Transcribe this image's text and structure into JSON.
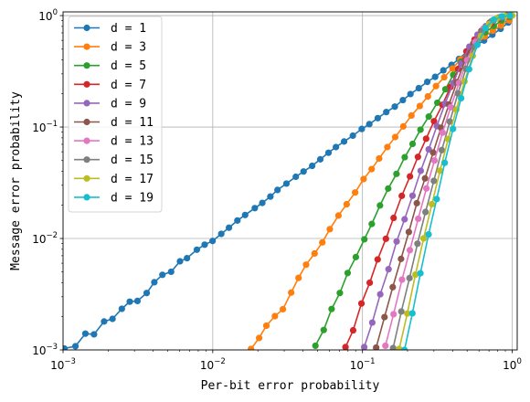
{
  "chart_data": {
    "type": "line",
    "title": "",
    "xlabel": "Per-bit error probability",
    "ylabel": "Message error probability",
    "xscale": "log",
    "yscale": "log",
    "xlim": [
      0.001,
      1.08
    ],
    "ylim": [
      0.001,
      1.08
    ],
    "x_ticks": [
      {
        "value": 0.001,
        "base": "10",
        "exp": "−3"
      },
      {
        "value": 0.01,
        "base": "10",
        "exp": "−2"
      },
      {
        "value": 0.1,
        "base": "10",
        "exp": "−1"
      },
      {
        "value": 1,
        "base": "10",
        "exp": "0"
      }
    ],
    "y_ticks": [
      {
        "value": 0.001,
        "base": "10",
        "exp": "−3"
      },
      {
        "value": 0.01,
        "base": "10",
        "exp": "−2"
      },
      {
        "value": 0.1,
        "base": "10",
        "exp": "−1"
      },
      {
        "value": 1,
        "base": "10",
        "exp": "0"
      }
    ],
    "grid": true,
    "legend_position": "top-left",
    "series": [
      {
        "name": "d = 1",
        "color": "#1f77b4",
        "points": [
          [
            0.00102,
            0.00103
          ],
          [
            0.00121,
            0.00108
          ],
          [
            0.00141,
            0.0014
          ],
          [
            0.00161,
            0.00138
          ],
          [
            0.00188,
            0.0018
          ],
          [
            0.00214,
            0.0019
          ],
          [
            0.00247,
            0.00234
          ],
          [
            0.00279,
            0.00271
          ],
          [
            0.00314,
            0.00275
          ],
          [
            0.00362,
            0.00324
          ],
          [
            0.00407,
            0.00405
          ],
          [
            0.00461,
            0.00472
          ],
          [
            0.00527,
            0.00503
          ],
          [
            0.00604,
            0.00624
          ],
          [
            0.00673,
            0.00666
          ],
          [
            0.00783,
            0.00793
          ],
          [
            0.00883,
            0.0088
          ],
          [
            0.00997,
            0.0095
          ],
          [
            0.0114,
            0.011
          ],
          [
            0.01283,
            0.01249
          ],
          [
            0.0146,
            0.0145
          ],
          [
            0.01645,
            0.01625
          ],
          [
            0.01909,
            0.01872
          ],
          [
            0.02142,
            0.02085
          ],
          [
            0.02425,
            0.02377
          ],
          [
            0.02706,
            0.02726
          ],
          [
            0.03104,
            0.03109
          ],
          [
            0.03585,
            0.03578
          ],
          [
            0.04042,
            0.03991
          ],
          [
            0.04611,
            0.04485
          ],
          [
            0.05225,
            0.05135
          ],
          [
            0.0593,
            0.0588
          ],
          [
            0.06649,
            0.06611
          ],
          [
            0.07536,
            0.07416
          ],
          [
            0.08622,
            0.08364
          ],
          [
            0.09892,
            0.0961
          ],
          [
            0.1111,
            0.1062
          ],
          [
            0.1265,
            0.1202
          ],
          [
            0.1442,
            0.1363
          ],
          [
            0.1644,
            0.1524
          ],
          [
            0.1861,
            0.1745
          ],
          [
            0.2091,
            0.1977
          ],
          [
            0.2377,
            0.2232
          ],
          [
            0.2708,
            0.2544
          ],
          [
            0.3057,
            0.282
          ],
          [
            0.3468,
            0.3225
          ],
          [
            0.3934,
            0.3613
          ],
          [
            0.4408,
            0.4086
          ],
          [
            0.5037,
            0.4792
          ],
          [
            0.5732,
            0.5437
          ],
          [
            0.6488,
            0.5971
          ],
          [
            0.737,
            0.6739
          ],
          [
            0.8364,
            0.7606
          ],
          [
            0.9416,
            0.8661
          ]
        ]
      },
      {
        "name": "d = 3",
        "color": "#ff7f0e",
        "points": [
          [
            0.018,
            0.00102
          ],
          [
            0.0204,
            0.00128
          ],
          [
            0.0228,
            0.00165
          ],
          [
            0.026,
            0.00201
          ],
          [
            0.0294,
            0.00232
          ],
          [
            0.0334,
            0.00327
          ],
          [
            0.0374,
            0.00443
          ],
          [
            0.042,
            0.00582
          ],
          [
            0.0479,
            0.00734
          ],
          [
            0.0539,
            0.00922
          ],
          [
            0.0605,
            0.01212
          ],
          [
            0.0691,
            0.01607
          ],
          [
            0.0784,
            0.0203
          ],
          [
            0.0893,
            0.02587
          ],
          [
            0.1017,
            0.03415
          ],
          [
            0.1151,
            0.04197
          ],
          [
            0.1292,
            0.05221
          ],
          [
            0.1466,
            0.06617
          ],
          [
            0.1654,
            0.08135
          ],
          [
            0.1873,
            0.1013
          ],
          [
            0.2123,
            0.1269
          ],
          [
            0.2414,
            0.1544
          ],
          [
            0.2735,
            0.1883
          ],
          [
            0.3097,
            0.233
          ],
          [
            0.3514,
            0.2797
          ],
          [
            0.3996,
            0.3352
          ],
          [
            0.4504,
            0.4037
          ],
          [
            0.5085,
            0.4803
          ],
          [
            0.5792,
            0.5585
          ],
          [
            0.6559,
            0.6499
          ],
          [
            0.743,
            0.7331
          ],
          [
            0.8407,
            0.8137
          ],
          [
            0.956,
            0.9058
          ]
        ]
      },
      {
        "name": "d = 5",
        "color": "#2ca02c",
        "points": [
          [
            0.0485,
            0.00109
          ],
          [
            0.0551,
            0.00151
          ],
          [
            0.0622,
            0.00233
          ],
          [
            0.0706,
            0.00324
          ],
          [
            0.0796,
            0.0049
          ],
          [
            0.0903,
            0.00681
          ],
          [
            0.1029,
            0.00983
          ],
          [
            0.1154,
            0.0135
          ],
          [
            0.1309,
            0.01978
          ],
          [
            0.1485,
            0.02805
          ],
          [
            0.1687,
            0.03798
          ],
          [
            0.1915,
            0.05364
          ],
          [
            0.2161,
            0.07058
          ],
          [
            0.244,
            0.09468
          ],
          [
            0.2772,
            0.1241
          ],
          [
            0.3162,
            0.1653
          ],
          [
            0.358,
            0.2183
          ],
          [
            0.4035,
            0.2939
          ],
          [
            0.4548,
            0.3852
          ],
          [
            0.5171,
            0.4814
          ],
          [
            0.5808,
            0.5968
          ],
          [
            0.6618,
            0.708
          ],
          [
            0.7534,
            0.8084
          ],
          [
            0.851,
            0.9056
          ],
          [
            0.9673,
            0.9742
          ]
        ]
      },
      {
        "name": "d = 7",
        "color": "#d62728",
        "points": [
          [
            0.077,
            0.00106
          ],
          [
            0.0866,
            0.0015
          ],
          [
            0.0984,
            0.00261
          ],
          [
            0.1118,
            0.00401
          ],
          [
            0.1263,
            0.00649
          ],
          [
            0.1434,
            0.00994
          ],
          [
            0.1614,
            0.01529
          ],
          [
            0.183,
            0.02413
          ],
          [
            0.2076,
            0.03606
          ],
          [
            0.2345,
            0.05394
          ],
          [
            0.2661,
            0.07858
          ],
          [
            0.3003,
            0.1127
          ],
          [
            0.3418,
            0.1583
          ],
          [
            0.3872,
            0.229
          ],
          [
            0.4366,
            0.3327
          ],
          [
            0.4949,
            0.4776
          ],
          [
            0.5605,
            0.6093
          ],
          [
            0.6379,
            0.7364
          ],
          [
            0.7223,
            0.8479
          ],
          [
            0.8183,
            0.9434
          ],
          [
            0.928,
            0.9857
          ]
        ]
      },
      {
        "name": "d = 9",
        "color": "#9467bd",
        "points": [
          [
            0.1027,
            0.00106
          ],
          [
            0.1162,
            0.00176
          ],
          [
            0.1314,
            0.00316
          ],
          [
            0.1493,
            0.0053
          ],
          [
            0.1691,
            0.0094
          ],
          [
            0.1911,
            0.01487
          ],
          [
            0.216,
            0.02419
          ],
          [
            0.2448,
            0.04047
          ],
          [
            0.2769,
            0.06308
          ],
          [
            0.3139,
            0.102
          ],
          [
            0.3561,
            0.1626
          ],
          [
            0.4046,
            0.2485
          ],
          [
            0.4558,
            0.3719
          ],
          [
            0.5176,
            0.5264
          ],
          [
            0.5866,
            0.674
          ],
          [
            0.6659,
            0.8049
          ],
          [
            0.754,
            0.9098
          ],
          [
            0.855,
            0.966
          ],
          [
            0.9697,
            1.0
          ]
        ]
      },
      {
        "name": "d = 11",
        "color": "#8c564b",
        "points": [
          [
            0.1234,
            0.00105
          ],
          [
            0.1403,
            0.00197
          ],
          [
            0.1593,
            0.00366
          ],
          [
            0.1809,
            0.00656
          ],
          [
            0.204,
            0.01144
          ],
          [
            0.2307,
            0.02075
          ],
          [
            0.2617,
            0.0346
          ],
          [
            0.2966,
            0.059
          ],
          [
            0.3347,
            0.09839
          ],
          [
            0.378,
            0.1593
          ],
          [
            0.4275,
            0.253
          ],
          [
            0.4848,
            0.3982
          ],
          [
            0.5503,
            0.5643
          ],
          [
            0.6222,
            0.7295
          ],
          [
            0.7042,
            0.8611
          ],
          [
            0.7999,
            0.9451
          ],
          [
            0.9082,
            0.9907
          ]
        ]
      },
      {
        "name": "d = 13",
        "color": "#e377c2",
        "points": [
          [
            0.1423,
            0.00109
          ],
          [
            0.1612,
            0.00209
          ],
          [
            0.1836,
            0.00427
          ],
          [
            0.2073,
            0.00786
          ],
          [
            0.2356,
            0.01503
          ],
          [
            0.2673,
            0.02812
          ],
          [
            0.3027,
            0.05011
          ],
          [
            0.3427,
            0.08912
          ],
          [
            0.388,
            0.1506
          ],
          [
            0.4414,
            0.2491
          ],
          [
            0.4996,
            0.3986
          ],
          [
            0.5663,
            0.5796
          ],
          [
            0.643,
            0.7666
          ],
          [
            0.7285,
            0.8941
          ],
          [
            0.8272,
            0.9667
          ],
          [
            0.9328,
            1.0
          ]
        ]
      },
      {
        "name": "d = 15",
        "color": "#7f7f7f",
        "points": [
          [
            0.1602,
            0.00104
          ],
          [
            0.1817,
            0.00221
          ],
          [
            0.2061,
            0.00441
          ],
          [
            0.233,
            0.00898
          ],
          [
            0.2636,
            0.01729
          ],
          [
            0.2996,
            0.03288
          ],
          [
            0.3387,
            0.06211
          ],
          [
            0.3831,
            0.1118
          ],
          [
            0.434,
            0.2004
          ],
          [
            0.4912,
            0.3332
          ],
          [
            0.5567,
            0.5192
          ],
          [
            0.6311,
            0.7235
          ],
          [
            0.7153,
            0.8732
          ],
          [
            0.8096,
            0.9594
          ],
          [
            0.9192,
            1.0
          ]
        ]
      },
      {
        "name": "d = 17",
        "color": "#bcbd22",
        "points": [
          [
            0.1759,
            0.00102
          ],
          [
            0.1992,
            0.00212
          ],
          [
            0.2257,
            0.00474
          ],
          [
            0.256,
            0.01001
          ],
          [
            0.2909,
            0.02032
          ],
          [
            0.3294,
            0.04053
          ],
          [
            0.3733,
            0.07808
          ],
          [
            0.4233,
            0.1435
          ],
          [
            0.48,
            0.2566
          ],
          [
            0.545,
            0.435
          ],
          [
            0.6167,
            0.6563
          ],
          [
            0.6991,
            0.8379
          ],
          [
            0.7919,
            0.9466
          ],
          [
            0.898,
            0.9906
          ],
          [
            1.0,
            1.0
          ]
        ]
      },
      {
        "name": "d = 19",
        "color": "#17becf",
        "points": [
          [
            0.1907,
            0.001
          ],
          [
            0.2155,
            0.00213
          ],
          [
            0.2437,
            0.00487
          ],
          [
            0.2763,
            0.01087
          ],
          [
            0.3132,
            0.02258
          ],
          [
            0.3543,
            0.04773
          ],
          [
            0.4023,
            0.09614
          ],
          [
            0.4559,
            0.1814
          ],
          [
            0.5155,
            0.3304
          ],
          [
            0.5848,
            0.5465
          ],
          [
            0.6633,
            0.773
          ],
          [
            0.7516,
            0.9176
          ],
          [
            0.8532,
            0.9842
          ],
          [
            0.9665,
            1.0
          ]
        ]
      }
    ]
  }
}
